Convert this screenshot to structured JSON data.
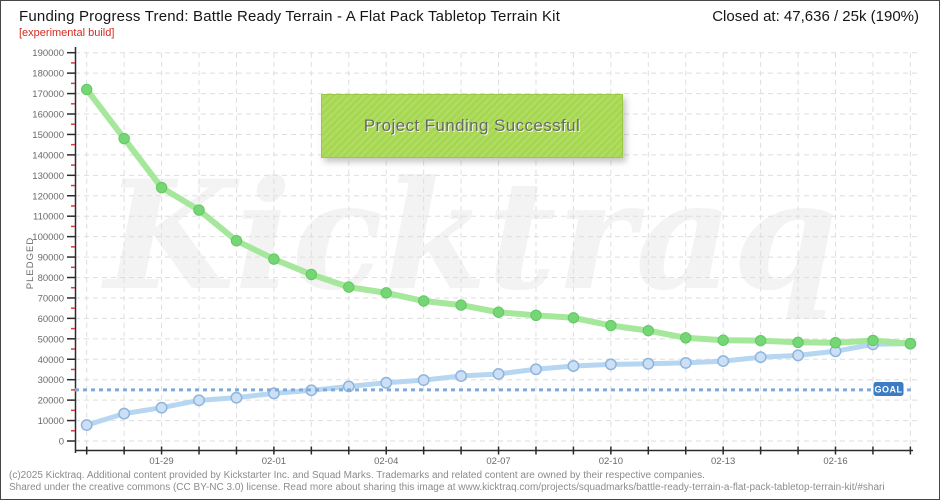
{
  "header": {
    "title": "Funding Progress Trend: Battle Ready Terrain - A Flat Pack Tabletop Terrain Kit",
    "build_tag": "[experimental build]",
    "closed_at": "Closed at:  47,636 / 25k (190%)"
  },
  "banner": {
    "text": "Project Funding Successful"
  },
  "watermark": {
    "text": "Kicktraq"
  },
  "footer": {
    "line1": "(c)2025 Kicktraq. Additional content provided by Kickstarter Inc. and Squad Marks. Trademarks and related content are owned by their respective companies.",
    "line2": "Shared under the creative commons (CC BY-NC 3.0) license. Read more about sharing this image at www.kicktraq.com/projects/squadmarks/battle-ready-terrain-a-flat-pack-tabletop-terrain-kit/#shari"
  },
  "chart_data": {
    "type": "line",
    "title": "Funding Progress Trend",
    "xlabel": "",
    "ylabel": "PLEDGED",
    "ylim": [
      0,
      190000
    ],
    "y_tick_step": 10000,
    "y_minor_tick_step": 5000,
    "grid": true,
    "legend": "none",
    "x": [
      "01-27",
      "01-28",
      "01-29",
      "01-30",
      "01-31",
      "02-01",
      "02-02",
      "02-03",
      "02-04",
      "02-05",
      "02-06",
      "02-07",
      "02-08",
      "02-09",
      "02-10",
      "02-11",
      "02-12",
      "02-13",
      "02-14",
      "02-15",
      "02-16",
      "02-17",
      "02-18"
    ],
    "x_label_indices": [
      2,
      5,
      8,
      11,
      14,
      17,
      20
    ],
    "x_tick_labels": [
      "01-29",
      "02-01",
      "02-04",
      "02-07",
      "02-10",
      "02-13",
      "02-16"
    ],
    "series": [
      {
        "name": "trend",
        "color": "#a5e79b",
        "dot_fill": "#74d674",
        "dot_stroke": "#62c862",
        "values": [
          172000,
          148000,
          124000,
          113000,
          98000,
          89000,
          81500,
          75300,
          72500,
          68500,
          66500,
          63000,
          61500,
          60300,
          56500,
          54000,
          50500,
          49300,
          49100,
          48300,
          48100,
          49200,
          47636
        ]
      },
      {
        "name": "pledged",
        "color": "#b6d6f2",
        "dot_fill": "#cbe0f6",
        "dot_stroke": "#90b5db",
        "values": [
          7800,
          13400,
          16300,
          19900,
          21200,
          23300,
          24800,
          26700,
          28500,
          29800,
          31800,
          32800,
          35100,
          36700,
          37500,
          37800,
          38200,
          39100,
          41000,
          41900,
          43900,
          47300,
          47636
        ]
      }
    ],
    "goal_line": {
      "value": 25000,
      "label": "GOAL",
      "color": "#7fabdc",
      "badge_color": "#3b7cc4"
    },
    "final_pledged": "47,636",
    "goal_display": "25k",
    "percent_funded": "190%"
  },
  "colors": {
    "grid": "#dedede",
    "axis": "#2b2b2b",
    "minor_tick": "#d93a3a",
    "banner_bg": "#a6d750",
    "experimental_red": "#d42a20"
  }
}
